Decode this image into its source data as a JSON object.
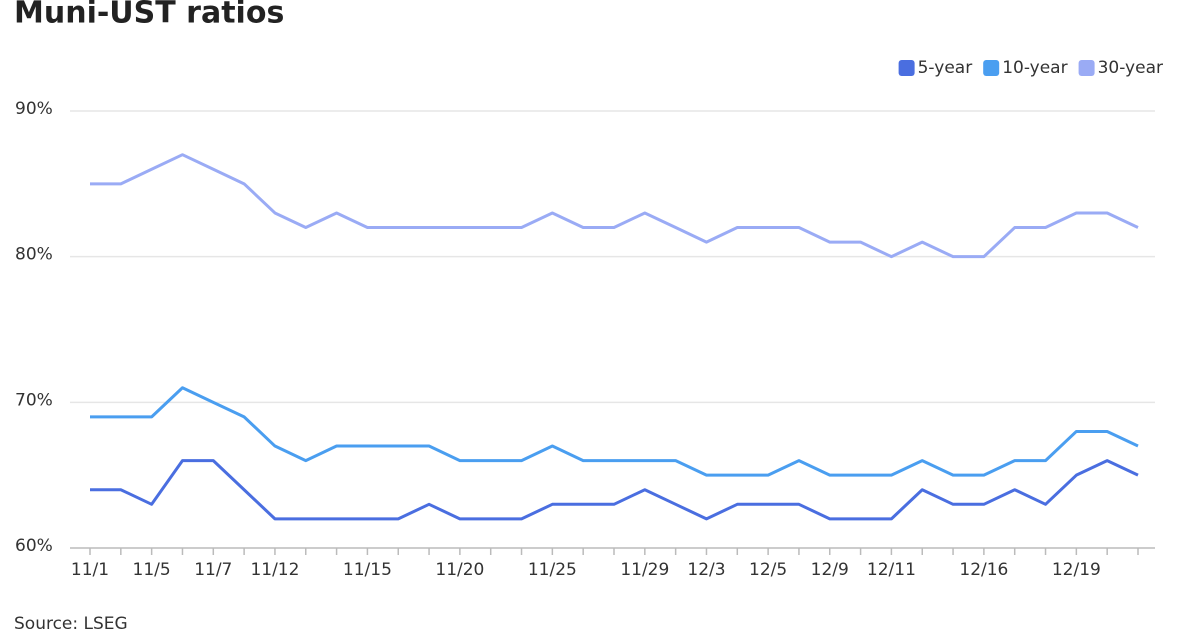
{
  "chart_data": {
    "type": "line",
    "title": "Muni-UST ratios",
    "source": "Source: LSEG",
    "categories": [
      "11/1",
      null,
      "11/5",
      null,
      "11/7",
      null,
      "11/12",
      null,
      null,
      "11/15",
      null,
      null,
      "11/20",
      null,
      null,
      "11/25",
      null,
      null,
      "11/29",
      null,
      "12/3",
      null,
      "12/5",
      null,
      "12/9",
      null,
      "12/11",
      null,
      null,
      "12/16",
      null,
      null,
      "12/19",
      null,
      null
    ],
    "series": [
      {
        "name": "5-year",
        "color": "#4a6ee0",
        "values": [
          64,
          64,
          63,
          66,
          66,
          64,
          62,
          62,
          62,
          62,
          62,
          63,
          62,
          62,
          62,
          63,
          63,
          63,
          64,
          63,
          62,
          63,
          63,
          63,
          62,
          62,
          62,
          64,
          63,
          63,
          64,
          63,
          65,
          66,
          65
        ]
      },
      {
        "name": "10-year",
        "color": "#4a9ef0",
        "values": [
          69,
          69,
          69,
          71,
          70,
          69,
          67,
          66,
          67,
          67,
          67,
          67,
          66,
          66,
          66,
          67,
          66,
          66,
          66,
          66,
          65,
          65,
          65,
          66,
          65,
          65,
          65,
          66,
          65,
          65,
          66,
          66,
          68,
          68,
          67
        ]
      },
      {
        "name": "30-year",
        "color": "#9aabf5",
        "values": [
          85,
          85,
          86,
          87,
          86,
          85,
          83,
          82,
          83,
          82,
          82,
          82,
          82,
          82,
          82,
          83,
          82,
          82,
          83,
          82,
          81,
          82,
          82,
          82,
          81,
          81,
          80,
          81,
          80,
          80,
          82,
          82,
          83,
          83,
          82
        ]
      }
    ],
    "ylim": [
      60,
      90
    ],
    "yticks": [
      {
        "value": 60,
        "label": "60%"
      },
      {
        "value": 70,
        "label": "70%"
      },
      {
        "value": 80,
        "label": "80%"
      },
      {
        "value": 90,
        "label": "90%"
      }
    ],
    "grid": true,
    "legend": "top-right"
  }
}
